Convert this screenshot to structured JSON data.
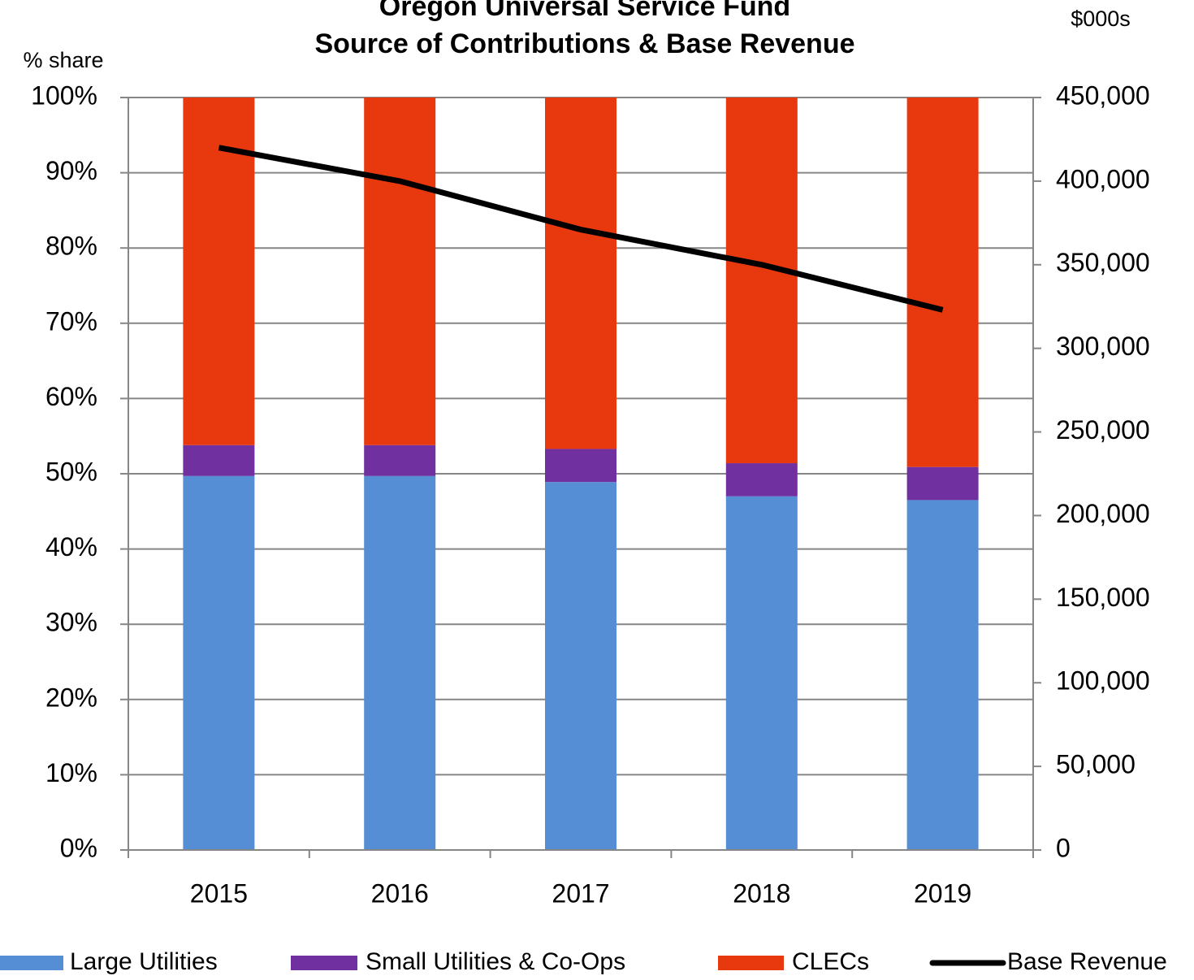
{
  "chart_data": {
    "type": "bar",
    "stacked": true,
    "title": [
      "Oregon Universal Service Fund",
      "Source of Contributions & Base Revenue"
    ],
    "y_label": "% share",
    "y2_label": "$000s",
    "categories": [
      "2015",
      "2016",
      "2017",
      "2018",
      "2019"
    ],
    "series": [
      {
        "name": "Large Utilities",
        "color": "#558ed5",
        "values": [
          49.7,
          49.7,
          48.9,
          47.0,
          46.5
        ]
      },
      {
        "name": "Small Utilities & Co-Ops",
        "color": "#7030a0",
        "values": [
          4.1,
          4.1,
          4.4,
          4.4,
          4.4
        ]
      },
      {
        "name": "CLECs",
        "color": "#e8380d",
        "values": [
          46.2,
          46.2,
          46.7,
          48.6,
          49.1
        ]
      },
      {
        "name": "Base Revenue",
        "color": "#000000",
        "type": "line",
        "axis": "y2",
        "values": [
          420000,
          400000,
          371000,
          350000,
          323000
        ]
      }
    ],
    "ylim": [
      0,
      100
    ],
    "yticks": [
      {
        "value": 0,
        "label": "0%"
      },
      {
        "value": 10,
        "label": "10%"
      },
      {
        "value": 20,
        "label": "20%"
      },
      {
        "value": 30,
        "label": "30%"
      },
      {
        "value": 40,
        "label": "40%"
      },
      {
        "value": 50,
        "label": "50%"
      },
      {
        "value": 60,
        "label": "60%"
      },
      {
        "value": 70,
        "label": "70%"
      },
      {
        "value": 80,
        "label": "80%"
      },
      {
        "value": 90,
        "label": "90%"
      },
      {
        "value": 100,
        "label": "100%"
      }
    ],
    "y2lim": [
      0,
      450000
    ],
    "y2ticks": [
      0,
      {
        "value": 50000,
        "label": "50,000"
      },
      {
        "value": 100000,
        "label": "100,000"
      },
      {
        "value": 150000,
        "label": "150,000"
      },
      {
        "value": 200000,
        "label": "200,000"
      },
      {
        "value": 250000,
        "label": "250,000"
      },
      {
        "value": 300000,
        "label": "300,000"
      },
      {
        "value": 350000,
        "label": "350,000"
      },
      {
        "value": 400000,
        "label": "400,000"
      },
      {
        "value": 450000,
        "label": "450,000"
      }
    ],
    "grid": true,
    "legend": "bottom"
  }
}
